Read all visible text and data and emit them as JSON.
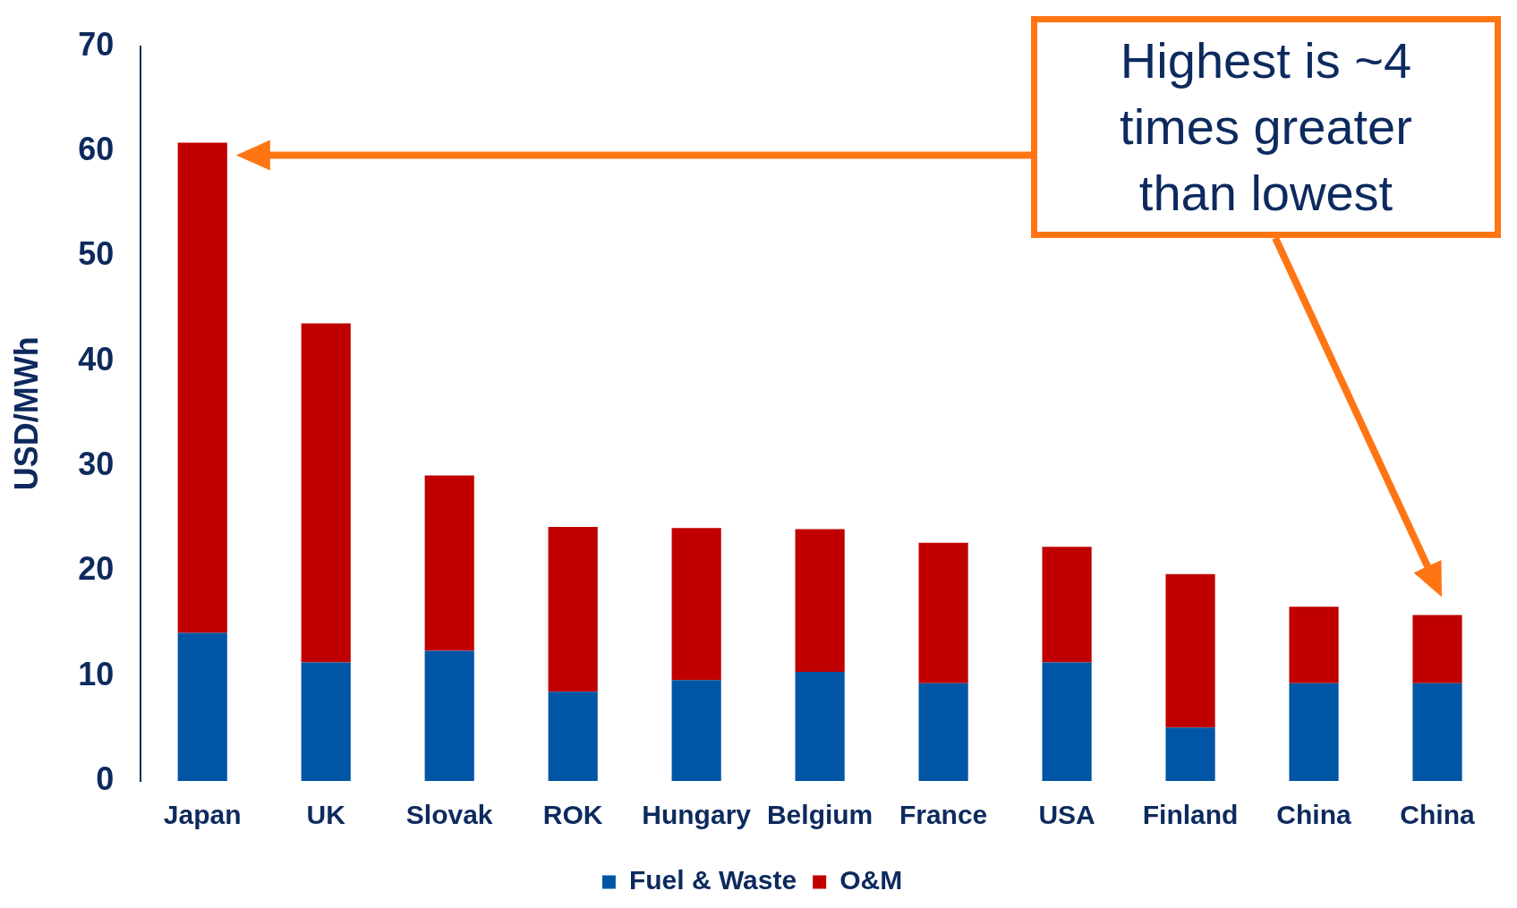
{
  "chart_data": {
    "type": "bar",
    "stacked": true,
    "ylabel": "USD/MWh",
    "categories": [
      "Japan",
      "UK",
      "Slovak",
      "ROK",
      "Hungary",
      "Belgium",
      "France",
      "USA",
      "Finland",
      "China",
      "China"
    ],
    "series": [
      {
        "name": "Fuel & Waste",
        "color": "#0055a5",
        "values": [
          14.1,
          11.3,
          12.4,
          8.5,
          9.6,
          10.4,
          9.3,
          11.3,
          5.1,
          9.3,
          9.3
        ]
      },
      {
        "name": "O&M",
        "color": "#c00000",
        "values": [
          46.7,
          32.3,
          16.7,
          15.7,
          14.5,
          13.6,
          13.4,
          11.0,
          14.6,
          7.3,
          6.5
        ]
      }
    ],
    "ylim": [
      0,
      70
    ],
    "yticks": [
      0,
      10,
      20,
      30,
      40,
      50,
      60,
      70
    ],
    "grid": false,
    "legend": "bottom",
    "annotations": [
      "Highest is ~4 times greater than lowest"
    ]
  }
}
